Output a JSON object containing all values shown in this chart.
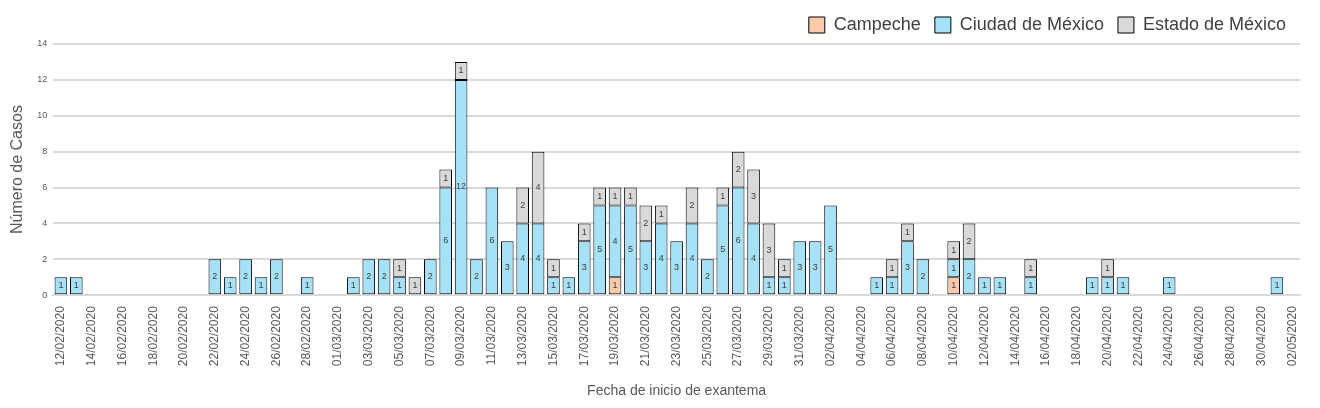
{
  "chart_data": {
    "type": "bar",
    "stacked": true,
    "xlabel": "Fecha de inicio de exantema",
    "ylabel": "Número de Casos",
    "categories": [
      "12/02/2020",
      null,
      "14/02/2020",
      null,
      "16/02/2020",
      null,
      "18/02/2020",
      null,
      "20/02/2020",
      null,
      "22/02/2020",
      null,
      "24/02/2020",
      null,
      "26/02/2020",
      null,
      "28/02/2020",
      null,
      "01/03/2020",
      null,
      "03/03/2020",
      null,
      "05/03/2020",
      null,
      "07/03/2020",
      null,
      "09/03/2020",
      null,
      "11/03/2020",
      null,
      "13/03/2020",
      null,
      "15/03/2020",
      null,
      "17/03/2020",
      null,
      "19/03/2020",
      null,
      "21/03/2020",
      null,
      "23/03/2020",
      null,
      "25/03/2020",
      null,
      "27/03/2020",
      null,
      "29/03/2020",
      null,
      "31/03/2020",
      null,
      "02/04/2020",
      null,
      "04/04/2020",
      null,
      "06/04/2020",
      null,
      "08/04/2020",
      null,
      "10/04/2020",
      null,
      "12/04/2020",
      null,
      "14/04/2020",
      null,
      "16/04/2020",
      null,
      "18/04/2020",
      null,
      "20/04/2020",
      null,
      "22/04/2020",
      null,
      "24/04/2020",
      null,
      "26/04/2020",
      null,
      "28/04/2020",
      null,
      "30/04/2020",
      null,
      "02/05/2020"
    ],
    "series": [
      {
        "name": "Campeche",
        "color": "#f8cbad",
        "values": [
          null,
          null,
          null,
          null,
          null,
          null,
          null,
          null,
          null,
          null,
          null,
          null,
          null,
          null,
          null,
          null,
          null,
          null,
          null,
          null,
          null,
          null,
          null,
          null,
          null,
          null,
          null,
          null,
          null,
          null,
          null,
          null,
          null,
          null,
          null,
          null,
          1,
          null,
          null,
          null,
          null,
          null,
          null,
          null,
          null,
          null,
          null,
          null,
          null,
          null,
          null,
          null,
          null,
          null,
          null,
          null,
          null,
          null,
          1,
          null,
          null,
          null,
          null,
          null,
          null,
          null,
          null,
          null,
          null,
          null,
          null,
          null,
          null,
          null,
          null,
          null,
          null,
          null,
          null,
          null,
          null
        ]
      },
      {
        "name": "Ciudad de México",
        "color": "#a5e1f7",
        "values": [
          1,
          1,
          null,
          null,
          null,
          null,
          null,
          null,
          null,
          null,
          2,
          1,
          2,
          1,
          2,
          null,
          1,
          null,
          null,
          1,
          2,
          2,
          1,
          null,
          2,
          6,
          12,
          2,
          6,
          3,
          4,
          4,
          1,
          1,
          3,
          5,
          4,
          5,
          3,
          4,
          3,
          4,
          2,
          5,
          6,
          4,
          1,
          1,
          3,
          3,
          5,
          null,
          null,
          1,
          1,
          3,
          2,
          null,
          1,
          2,
          1,
          1,
          null,
          1,
          null,
          null,
          null,
          1,
          1,
          1,
          null,
          null,
          1,
          null,
          null,
          null,
          null,
          null,
          null,
          1,
          null
        ]
      },
      {
        "name": "Estado de México",
        "color": "#d9d9d9",
        "values": [
          null,
          null,
          null,
          null,
          null,
          null,
          null,
          null,
          null,
          null,
          null,
          null,
          null,
          null,
          null,
          null,
          null,
          null,
          null,
          null,
          null,
          null,
          1,
          1,
          null,
          1,
          1,
          null,
          null,
          null,
          2,
          4,
          1,
          null,
          1,
          1,
          1,
          1,
          2,
          1,
          null,
          2,
          null,
          1,
          2,
          3,
          3,
          1,
          null,
          null,
          null,
          null,
          null,
          null,
          1,
          1,
          null,
          null,
          1,
          2,
          null,
          null,
          null,
          1,
          null,
          null,
          null,
          null,
          1,
          null,
          null,
          null,
          null,
          null,
          null,
          null,
          null,
          null,
          null,
          null,
          null
        ]
      }
    ],
    "ylim": [
      0,
      14
    ],
    "yticks": [
      0,
      2,
      4,
      6,
      8,
      10,
      12,
      14
    ],
    "grid": "y",
    "legend": "top right",
    "data_labels": true
  }
}
